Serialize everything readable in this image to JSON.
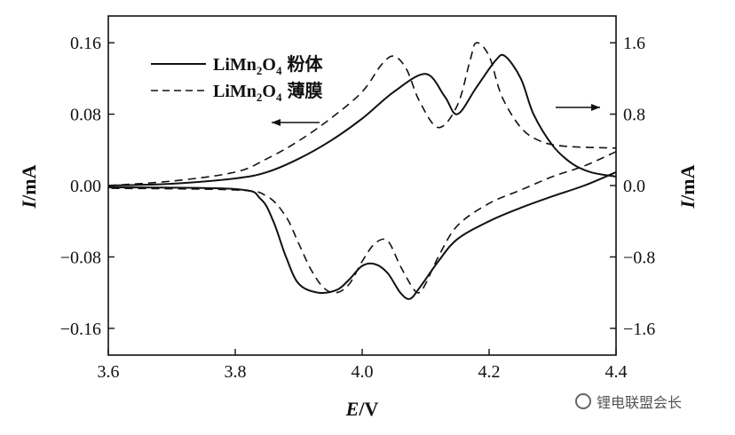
{
  "chart_data": {
    "type": "line",
    "xlabel_italic": "E",
    "xlabel_unit": "/V",
    "ylabel_left_italic": "I",
    "ylabel_left_unit": "/mA",
    "ylabel_right_italic": "I",
    "ylabel_right_unit": "/mA",
    "xlim": [
      3.6,
      4.4
    ],
    "ylim_left": [
      -0.19,
      0.19
    ],
    "ylim_right": [
      -1.9,
      1.9
    ],
    "x_ticks": [
      "3.6",
      "3.8",
      "4.0",
      "4.2",
      "4.4"
    ],
    "y_ticks_left": [
      "0.16",
      "0.08",
      "0.00",
      "−0.08",
      "−0.16"
    ],
    "y_ticks_right": [
      "1.6",
      "0.8",
      "0.0",
      "−0.8",
      "−1.6"
    ],
    "legend_position": "top-left",
    "series": [
      {
        "name_main": "LiMn",
        "name_sub1": "2",
        "name_mid": "O",
        "name_sub2": "4",
        "name_cn": "粉体",
        "axis": "left",
        "dash": "solid",
        "anodic": [
          [
            3.6,
            0.0
          ],
          [
            3.7,
            0.002
          ],
          [
            3.8,
            0.008
          ],
          [
            3.85,
            0.015
          ],
          [
            3.9,
            0.03
          ],
          [
            3.95,
            0.05
          ],
          [
            4.0,
            0.075
          ],
          [
            4.05,
            0.105
          ],
          [
            4.1,
            0.125
          ],
          [
            4.13,
            0.1
          ],
          [
            4.15,
            0.08
          ],
          [
            4.18,
            0.11
          ],
          [
            4.21,
            0.14
          ],
          [
            4.225,
            0.145
          ],
          [
            4.25,
            0.12
          ],
          [
            4.27,
            0.08
          ],
          [
            4.3,
            0.045
          ],
          [
            4.33,
            0.025
          ],
          [
            4.36,
            0.015
          ],
          [
            4.4,
            0.01
          ]
        ],
        "cathodic": [
          [
            4.4,
            0.015
          ],
          [
            4.35,
            0.0
          ],
          [
            4.3,
            -0.012
          ],
          [
            4.25,
            -0.025
          ],
          [
            4.2,
            -0.04
          ],
          [
            4.15,
            -0.06
          ],
          [
            4.12,
            -0.085
          ],
          [
            4.09,
            -0.115
          ],
          [
            4.075,
            -0.127
          ],
          [
            4.06,
            -0.12
          ],
          [
            4.04,
            -0.098
          ],
          [
            4.02,
            -0.088
          ],
          [
            4.0,
            -0.09
          ],
          [
            3.98,
            -0.105
          ],
          [
            3.96,
            -0.117
          ],
          [
            3.93,
            -0.12
          ],
          [
            3.9,
            -0.11
          ],
          [
            3.88,
            -0.08
          ],
          [
            3.86,
            -0.04
          ],
          [
            3.84,
            -0.015
          ],
          [
            3.8,
            -0.004
          ],
          [
            3.6,
            -0.002
          ]
        ]
      },
      {
        "name_main": "LiMn",
        "name_sub1": "2",
        "name_mid": "O",
        "name_sub2": "4",
        "name_cn": "薄膜",
        "axis": "right",
        "dash": "dashed",
        "anodic": [
          [
            3.6,
            0.0
          ],
          [
            3.7,
            0.05
          ],
          [
            3.8,
            0.15
          ],
          [
            3.85,
            0.3
          ],
          [
            3.9,
            0.5
          ],
          [
            3.95,
            0.75
          ],
          [
            4.0,
            1.05
          ],
          [
            4.03,
            1.35
          ],
          [
            4.05,
            1.45
          ],
          [
            4.07,
            1.3
          ],
          [
            4.09,
            0.95
          ],
          [
            4.12,
            0.65
          ],
          [
            4.15,
            0.9
          ],
          [
            4.17,
            1.4
          ],
          [
            4.18,
            1.6
          ],
          [
            4.2,
            1.45
          ],
          [
            4.22,
            1.0
          ],
          [
            4.25,
            0.65
          ],
          [
            4.28,
            0.5
          ],
          [
            4.32,
            0.44
          ],
          [
            4.4,
            0.42
          ]
        ],
        "cathodic": [
          [
            4.4,
            0.38
          ],
          [
            4.35,
            0.22
          ],
          [
            4.3,
            0.1
          ],
          [
            4.25,
            -0.05
          ],
          [
            4.2,
            -0.2
          ],
          [
            4.15,
            -0.45
          ],
          [
            4.12,
            -0.8
          ],
          [
            4.1,
            -1.1
          ],
          [
            4.09,
            -1.2
          ],
          [
            4.08,
            -1.15
          ],
          [
            4.06,
            -0.9
          ],
          [
            4.04,
            -0.62
          ],
          [
            4.02,
            -0.65
          ],
          [
            4.0,
            -0.85
          ],
          [
            3.98,
            -1.1
          ],
          [
            3.96,
            -1.2
          ],
          [
            3.94,
            -1.15
          ],
          [
            3.92,
            -0.95
          ],
          [
            3.9,
            -0.65
          ],
          [
            3.88,
            -0.35
          ],
          [
            3.85,
            -0.12
          ],
          [
            3.8,
            -0.05
          ],
          [
            3.6,
            -0.03
          ]
        ]
      }
    ],
    "annotations": [
      "left-arrow",
      "right-arrow"
    ]
  },
  "watermark": "锂电联盟会长"
}
